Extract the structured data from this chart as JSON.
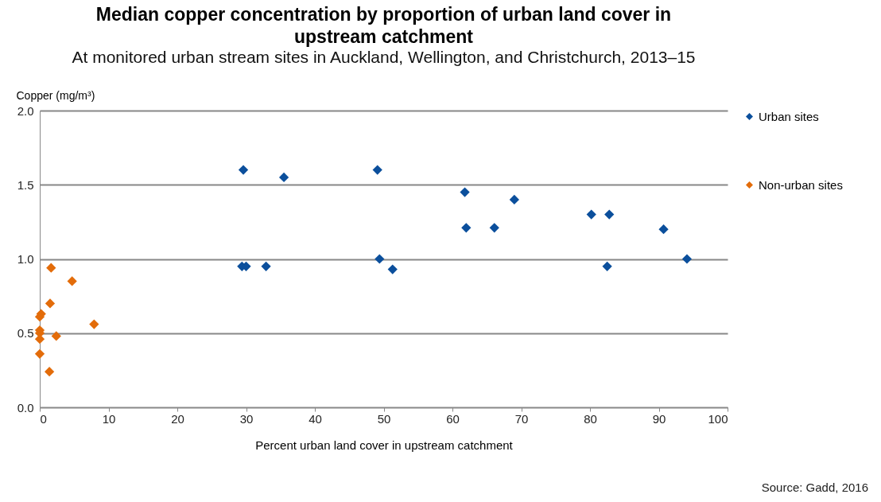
{
  "chart_data": {
    "type": "scatter",
    "title": "Median copper concentration by proportion of urban land cover in upstream catchment",
    "subtitle": "At monitored urban stream sites in Auckland, Wellington, and Christchurch, 2013–15",
    "xlabel": "Percent urban land cover in upstream catchment",
    "ylabel": "Copper (mg/m³)",
    "xlim": [
      0,
      100
    ],
    "xticks": [
      0,
      10,
      20,
      30,
      40,
      50,
      60,
      70,
      80,
      90,
      100
    ],
    "ylim": [
      0,
      2
    ],
    "yticks": [
      {
        "value": 0,
        "label": "0.0"
      },
      {
        "value": 0.5,
        "label": "0.5"
      },
      {
        "value": 1,
        "label": "1.0"
      },
      {
        "value": 1.5,
        "label": "1.5"
      },
      {
        "value": 2,
        "label": "2.0"
      }
    ],
    "grid": "y",
    "legend": "right",
    "marker": "diamond",
    "series": [
      {
        "name": "Urban sites",
        "color": "#0b4f9c",
        "x": [
          29.6,
          35.5,
          49.1,
          29.4,
          30.0,
          32.9,
          49.4,
          51.3,
          61.8,
          62.0,
          66.1,
          69.0,
          80.2,
          82.8,
          82.5,
          90.7,
          94.1
        ],
        "values": [
          1.6,
          1.55,
          1.6,
          0.95,
          0.95,
          0.95,
          1.0,
          0.93,
          1.45,
          1.21,
          1.21,
          1.4,
          1.3,
          1.3,
          0.95,
          1.2,
          1.0
        ]
      },
      {
        "name": "Non-urban sites",
        "color": "#e36c0a",
        "x": [
          1.65,
          4.7,
          1.5,
          0.2,
          0.0,
          7.9,
          0.0,
          0.0,
          2.4,
          0.0,
          0.0,
          1.4
        ],
        "values": [
          0.94,
          0.85,
          0.7,
          0.63,
          0.61,
          0.56,
          0.52,
          0.5,
          0.48,
          0.46,
          0.36,
          0.24
        ]
      }
    ],
    "annotations": [
      "Source: Gadd, 2016"
    ]
  }
}
